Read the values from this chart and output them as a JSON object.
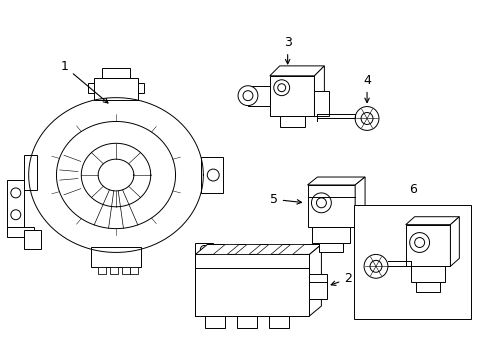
{
  "background_color": "#ffffff",
  "line_color": "#000000",
  "fig_width": 4.9,
  "fig_height": 3.6,
  "dpi": 100,
  "label_fontsize": 9,
  "lw": 0.7
}
